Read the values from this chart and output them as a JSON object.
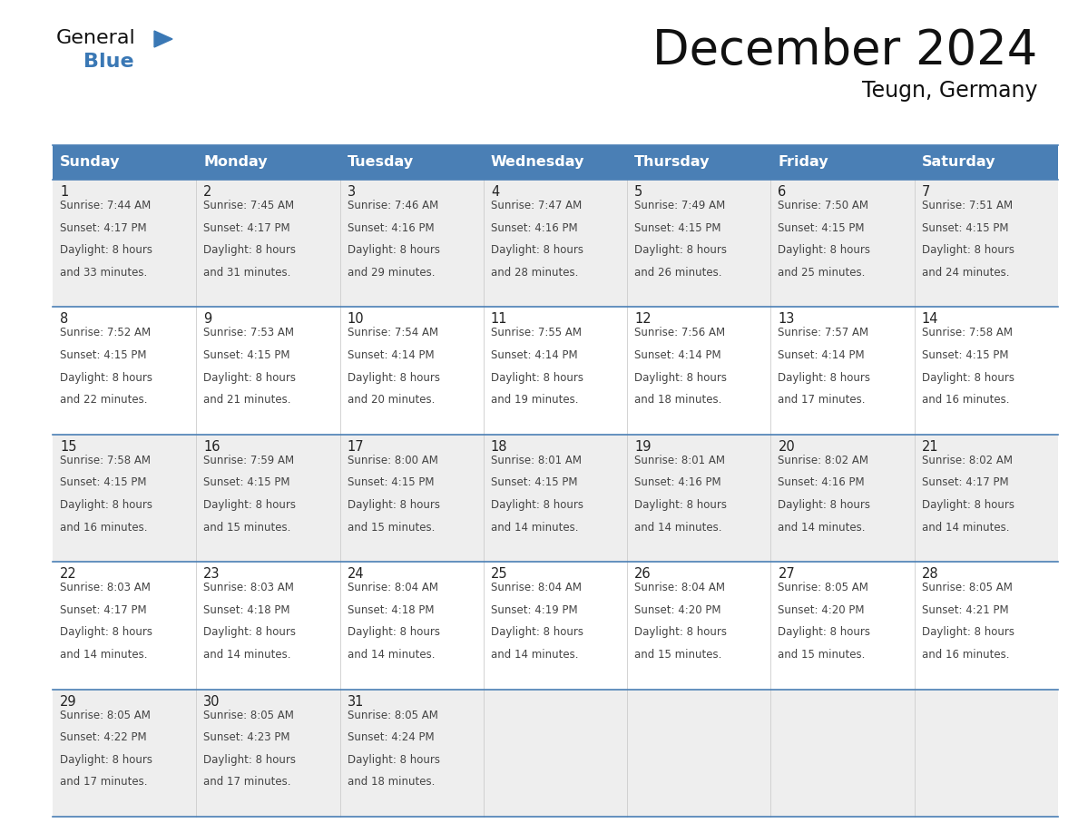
{
  "title": "December 2024",
  "subtitle": "Teugn, Germany",
  "header_color": "#4a7fb5",
  "header_text_color": "#ffffff",
  "day_names": [
    "Sunday",
    "Monday",
    "Tuesday",
    "Wednesday",
    "Thursday",
    "Friday",
    "Saturday"
  ],
  "background_color": "#ffffff",
  "row_colors": [
    "#eeeeee",
    "#ffffff",
    "#eeeeee",
    "#ffffff",
    "#eeeeee"
  ],
  "line_color": "#4a7fb5",
  "date_color": "#222222",
  "text_color": "#444444",
  "title_color": "#111111",
  "logo_general_color": "#111111",
  "logo_blue_color": "#3a78b5",
  "days": [
    {
      "day": 1,
      "col": 0,
      "row": 0,
      "sunrise": "7:44 AM",
      "sunset": "4:17 PM",
      "daylight": "8 hours and 33 minutes"
    },
    {
      "day": 2,
      "col": 1,
      "row": 0,
      "sunrise": "7:45 AM",
      "sunset": "4:17 PM",
      "daylight": "8 hours and 31 minutes"
    },
    {
      "day": 3,
      "col": 2,
      "row": 0,
      "sunrise": "7:46 AM",
      "sunset": "4:16 PM",
      "daylight": "8 hours and 29 minutes"
    },
    {
      "day": 4,
      "col": 3,
      "row": 0,
      "sunrise": "7:47 AM",
      "sunset": "4:16 PM",
      "daylight": "8 hours and 28 minutes"
    },
    {
      "day": 5,
      "col": 4,
      "row": 0,
      "sunrise": "7:49 AM",
      "sunset": "4:15 PM",
      "daylight": "8 hours and 26 minutes"
    },
    {
      "day": 6,
      "col": 5,
      "row": 0,
      "sunrise": "7:50 AM",
      "sunset": "4:15 PM",
      "daylight": "8 hours and 25 minutes"
    },
    {
      "day": 7,
      "col": 6,
      "row": 0,
      "sunrise": "7:51 AM",
      "sunset": "4:15 PM",
      "daylight": "8 hours and 24 minutes"
    },
    {
      "day": 8,
      "col": 0,
      "row": 1,
      "sunrise": "7:52 AM",
      "sunset": "4:15 PM",
      "daylight": "8 hours and 22 minutes"
    },
    {
      "day": 9,
      "col": 1,
      "row": 1,
      "sunrise": "7:53 AM",
      "sunset": "4:15 PM",
      "daylight": "8 hours and 21 minutes"
    },
    {
      "day": 10,
      "col": 2,
      "row": 1,
      "sunrise": "7:54 AM",
      "sunset": "4:14 PM",
      "daylight": "8 hours and 20 minutes"
    },
    {
      "day": 11,
      "col": 3,
      "row": 1,
      "sunrise": "7:55 AM",
      "sunset": "4:14 PM",
      "daylight": "8 hours and 19 minutes"
    },
    {
      "day": 12,
      "col": 4,
      "row": 1,
      "sunrise": "7:56 AM",
      "sunset": "4:14 PM",
      "daylight": "8 hours and 18 minutes"
    },
    {
      "day": 13,
      "col": 5,
      "row": 1,
      "sunrise": "7:57 AM",
      "sunset": "4:14 PM",
      "daylight": "8 hours and 17 minutes"
    },
    {
      "day": 14,
      "col": 6,
      "row": 1,
      "sunrise": "7:58 AM",
      "sunset": "4:15 PM",
      "daylight": "8 hours and 16 minutes"
    },
    {
      "day": 15,
      "col": 0,
      "row": 2,
      "sunrise": "7:58 AM",
      "sunset": "4:15 PM",
      "daylight": "8 hours and 16 minutes"
    },
    {
      "day": 16,
      "col": 1,
      "row": 2,
      "sunrise": "7:59 AM",
      "sunset": "4:15 PM",
      "daylight": "8 hours and 15 minutes"
    },
    {
      "day": 17,
      "col": 2,
      "row": 2,
      "sunrise": "8:00 AM",
      "sunset": "4:15 PM",
      "daylight": "8 hours and 15 minutes"
    },
    {
      "day": 18,
      "col": 3,
      "row": 2,
      "sunrise": "8:01 AM",
      "sunset": "4:15 PM",
      "daylight": "8 hours and 14 minutes"
    },
    {
      "day": 19,
      "col": 4,
      "row": 2,
      "sunrise": "8:01 AM",
      "sunset": "4:16 PM",
      "daylight": "8 hours and 14 minutes"
    },
    {
      "day": 20,
      "col": 5,
      "row": 2,
      "sunrise": "8:02 AM",
      "sunset": "4:16 PM",
      "daylight": "8 hours and 14 minutes"
    },
    {
      "day": 21,
      "col": 6,
      "row": 2,
      "sunrise": "8:02 AM",
      "sunset": "4:17 PM",
      "daylight": "8 hours and 14 minutes"
    },
    {
      "day": 22,
      "col": 0,
      "row": 3,
      "sunrise": "8:03 AM",
      "sunset": "4:17 PM",
      "daylight": "8 hours and 14 minutes"
    },
    {
      "day": 23,
      "col": 1,
      "row": 3,
      "sunrise": "8:03 AM",
      "sunset": "4:18 PM",
      "daylight": "8 hours and 14 minutes"
    },
    {
      "day": 24,
      "col": 2,
      "row": 3,
      "sunrise": "8:04 AM",
      "sunset": "4:18 PM",
      "daylight": "8 hours and 14 minutes"
    },
    {
      "day": 25,
      "col": 3,
      "row": 3,
      "sunrise": "8:04 AM",
      "sunset": "4:19 PM",
      "daylight": "8 hours and 14 minutes"
    },
    {
      "day": 26,
      "col": 4,
      "row": 3,
      "sunrise": "8:04 AM",
      "sunset": "4:20 PM",
      "daylight": "8 hours and 15 minutes"
    },
    {
      "day": 27,
      "col": 5,
      "row": 3,
      "sunrise": "8:05 AM",
      "sunset": "4:20 PM",
      "daylight": "8 hours and 15 minutes"
    },
    {
      "day": 28,
      "col": 6,
      "row": 3,
      "sunrise": "8:05 AM",
      "sunset": "4:21 PM",
      "daylight": "8 hours and 16 minutes"
    },
    {
      "day": 29,
      "col": 0,
      "row": 4,
      "sunrise": "8:05 AM",
      "sunset": "4:22 PM",
      "daylight": "8 hours and 17 minutes"
    },
    {
      "day": 30,
      "col": 1,
      "row": 4,
      "sunrise": "8:05 AM",
      "sunset": "4:23 PM",
      "daylight": "8 hours and 17 minutes"
    },
    {
      "day": 31,
      "col": 2,
      "row": 4,
      "sunrise": "8:05 AM",
      "sunset": "4:24 PM",
      "daylight": "8 hours and 18 minutes"
    }
  ],
  "num_rows": 5
}
